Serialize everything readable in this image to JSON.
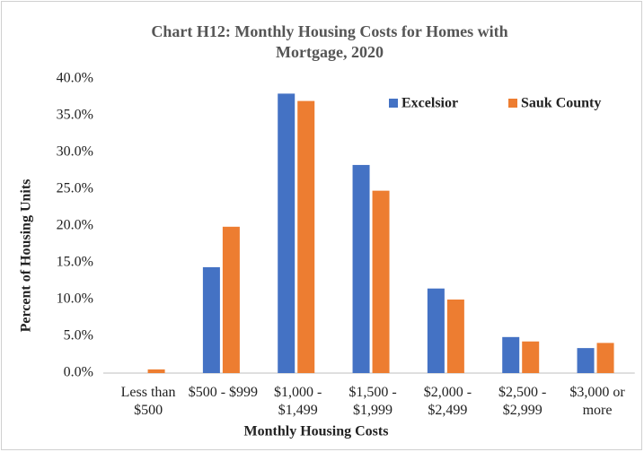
{
  "chart_data": {
    "type": "bar",
    "title": "Chart H12: Monthly Housing Costs for Homes with Mortgage, 2020",
    "x_label": "Monthly Housing Costs",
    "y_label": "Percent of Housing Units",
    "categories": [
      "Less than $500",
      "$500 - $999",
      "$1,000 - $1,499",
      "$1,500 - $1,999",
      "$2,000 - $2,499",
      "$2,500 - $2,999",
      "$3,000 or more"
    ],
    "series": [
      {
        "name": "Excelsior",
        "color": "#4472c4",
        "values": [
          0,
          14.4,
          38.0,
          28.3,
          11.5,
          4.9,
          3.4
        ]
      },
      {
        "name": "Sauk County",
        "color": "#ed7d31",
        "values": [
          0.5,
          19.9,
          37.0,
          24.8,
          10.0,
          4.3,
          4.1
        ]
      }
    ],
    "ylim": [
      0,
      40
    ],
    "yticks": [
      {
        "value": 0,
        "label": "0.0%"
      },
      {
        "value": 5,
        "label": "5.0%"
      },
      {
        "value": 10,
        "label": "10.0%"
      },
      {
        "value": 15,
        "label": "15.0%"
      },
      {
        "value": 20,
        "label": "20.0%"
      },
      {
        "value": 25,
        "label": "25.0%"
      },
      {
        "value": 30,
        "label": "30.0%"
      },
      {
        "value": 35,
        "label": "35.0%"
      },
      {
        "value": 40,
        "label": "40.0%"
      }
    ],
    "grid": false,
    "legend": "top-right"
  }
}
